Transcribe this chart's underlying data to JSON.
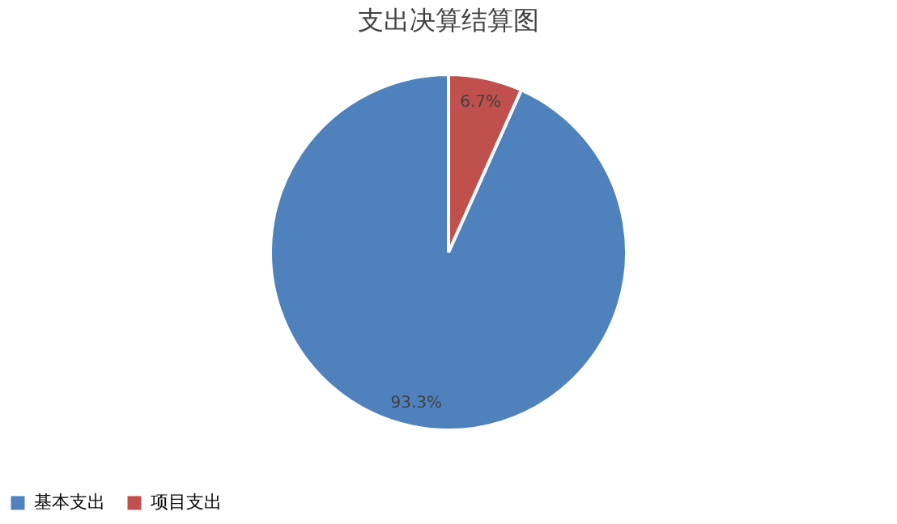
{
  "chart_data": {
    "type": "pie",
    "title": "支出决算结算图",
    "categories": [
      "基本支出",
      "项目支出"
    ],
    "values": [
      93.3,
      6.7
    ],
    "colors": [
      "#4f81bd",
      "#c0504d"
    ],
    "value_labels": [
      "93.3%",
      "6.7%"
    ],
    "legend": "bottom"
  }
}
